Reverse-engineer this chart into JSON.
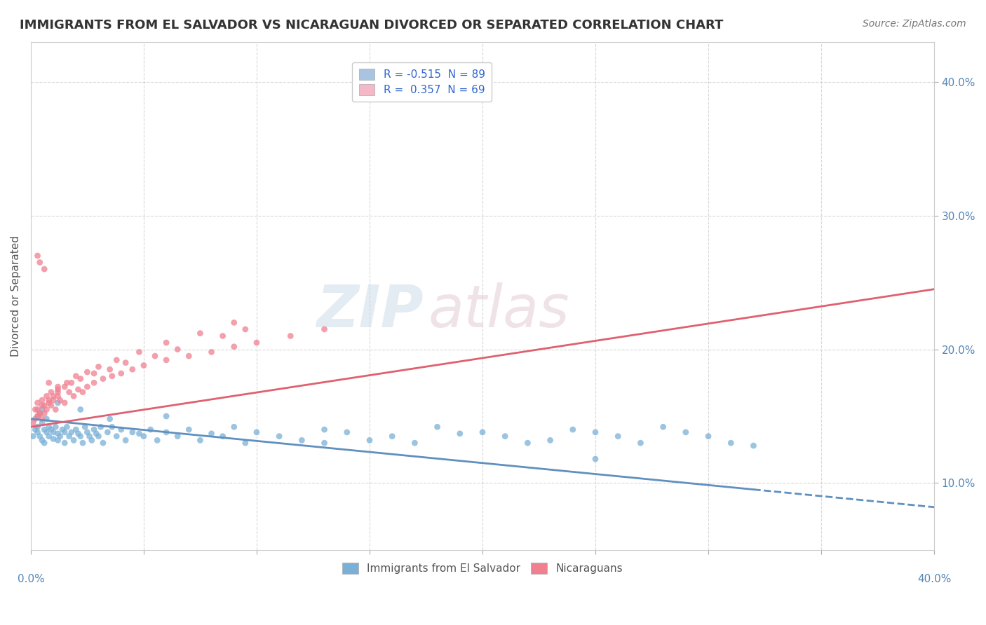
{
  "title": "IMMIGRANTS FROM EL SALVADOR VS NICARAGUAN DIVORCED OR SEPARATED CORRELATION CHART",
  "source": "Source: ZipAtlas.com",
  "ylabel": "Divorced or Separated",
  "ytick_values": [
    0.1,
    0.2,
    0.3,
    0.4
  ],
  "xlim": [
    0.0,
    0.4
  ],
  "ylim": [
    0.05,
    0.43
  ],
  "legend_entries": [
    {
      "label": "R = -0.515  N = 89",
      "color": "#a8c4e0"
    },
    {
      "label": "R =  0.357  N = 69",
      "color": "#f4b8c8"
    }
  ],
  "legend_labels_bottom": [
    "Immigrants from El Salvador",
    "Nicaraguans"
  ],
  "blue_scatter_color": "#7ab0d8",
  "pink_scatter_color": "#f08090",
  "blue_line_color": "#6090c0",
  "pink_line_color": "#e06070",
  "blue_scatter": {
    "x": [
      0.001,
      0.002,
      0.003,
      0.003,
      0.004,
      0.005,
      0.005,
      0.006,
      0.006,
      0.007,
      0.008,
      0.008,
      0.009,
      0.01,
      0.01,
      0.011,
      0.012,
      0.012,
      0.013,
      0.014,
      0.015,
      0.015,
      0.016,
      0.017,
      0.018,
      0.019,
      0.02,
      0.021,
      0.022,
      0.023,
      0.024,
      0.025,
      0.026,
      0.027,
      0.028,
      0.029,
      0.03,
      0.031,
      0.032,
      0.034,
      0.036,
      0.038,
      0.04,
      0.042,
      0.045,
      0.048,
      0.05,
      0.053,
      0.056,
      0.06,
      0.065,
      0.07,
      0.075,
      0.08,
      0.085,
      0.09,
      0.095,
      0.1,
      0.11,
      0.12,
      0.13,
      0.14,
      0.15,
      0.16,
      0.17,
      0.18,
      0.19,
      0.2,
      0.21,
      0.22,
      0.23,
      0.24,
      0.25,
      0.26,
      0.27,
      0.28,
      0.29,
      0.3,
      0.31,
      0.32,
      0.003,
      0.005,
      0.007,
      0.012,
      0.022,
      0.035,
      0.06,
      0.13,
      0.25
    ],
    "y": [
      0.135,
      0.14,
      0.138,
      0.142,
      0.135,
      0.132,
      0.145,
      0.13,
      0.14,
      0.138,
      0.142,
      0.135,
      0.14,
      0.138,
      0.133,
      0.142,
      0.137,
      0.132,
      0.135,
      0.14,
      0.138,
      0.13,
      0.142,
      0.135,
      0.138,
      0.132,
      0.14,
      0.137,
      0.135,
      0.13,
      0.142,
      0.138,
      0.135,
      0.132,
      0.14,
      0.137,
      0.135,
      0.142,
      0.13,
      0.138,
      0.142,
      0.135,
      0.14,
      0.132,
      0.138,
      0.137,
      0.135,
      0.14,
      0.132,
      0.138,
      0.135,
      0.14,
      0.132,
      0.137,
      0.135,
      0.142,
      0.13,
      0.138,
      0.135,
      0.132,
      0.14,
      0.138,
      0.132,
      0.135,
      0.13,
      0.142,
      0.137,
      0.138,
      0.135,
      0.13,
      0.132,
      0.14,
      0.138,
      0.135,
      0.13,
      0.142,
      0.138,
      0.135,
      0.13,
      0.128,
      0.15,
      0.155,
      0.148,
      0.16,
      0.155,
      0.148,
      0.15,
      0.13,
      0.118
    ]
  },
  "pink_scatter": {
    "x": [
      0.001,
      0.002,
      0.003,
      0.003,
      0.004,
      0.005,
      0.005,
      0.006,
      0.007,
      0.008,
      0.009,
      0.01,
      0.011,
      0.012,
      0.013,
      0.015,
      0.017,
      0.019,
      0.021,
      0.023,
      0.025,
      0.028,
      0.032,
      0.036,
      0.04,
      0.045,
      0.05,
      0.06,
      0.07,
      0.08,
      0.09,
      0.1,
      0.115,
      0.13,
      0.002,
      0.004,
      0.006,
      0.008,
      0.01,
      0.012,
      0.015,
      0.018,
      0.022,
      0.028,
      0.035,
      0.042,
      0.055,
      0.065,
      0.085,
      0.095,
      0.003,
      0.005,
      0.007,
      0.009,
      0.012,
      0.016,
      0.02,
      0.025,
      0.03,
      0.038,
      0.048,
      0.06,
      0.075,
      0.09,
      0.004,
      0.003,
      0.006,
      0.008,
      0.012
    ],
    "y": [
      0.145,
      0.148,
      0.15,
      0.155,
      0.152,
      0.148,
      0.158,
      0.152,
      0.155,
      0.16,
      0.158,
      0.162,
      0.155,
      0.165,
      0.162,
      0.16,
      0.168,
      0.165,
      0.17,
      0.168,
      0.172,
      0.175,
      0.178,
      0.18,
      0.182,
      0.185,
      0.188,
      0.192,
      0.195,
      0.198,
      0.202,
      0.205,
      0.21,
      0.215,
      0.155,
      0.152,
      0.158,
      0.162,
      0.165,
      0.168,
      0.172,
      0.175,
      0.178,
      0.182,
      0.185,
      0.19,
      0.195,
      0.2,
      0.21,
      0.215,
      0.16,
      0.162,
      0.165,
      0.168,
      0.172,
      0.175,
      0.18,
      0.183,
      0.187,
      0.192,
      0.198,
      0.205,
      0.212,
      0.22,
      0.265,
      0.27,
      0.26,
      0.175,
      0.17
    ]
  },
  "blue_trend": {
    "x_start": 0.0,
    "x_end": 0.4,
    "y_start": 0.148,
    "y_end": 0.082,
    "dashed_start": 0.32
  },
  "pink_trend": {
    "x_start": 0.0,
    "x_end": 0.4,
    "y_start": 0.142,
    "y_end": 0.245
  }
}
